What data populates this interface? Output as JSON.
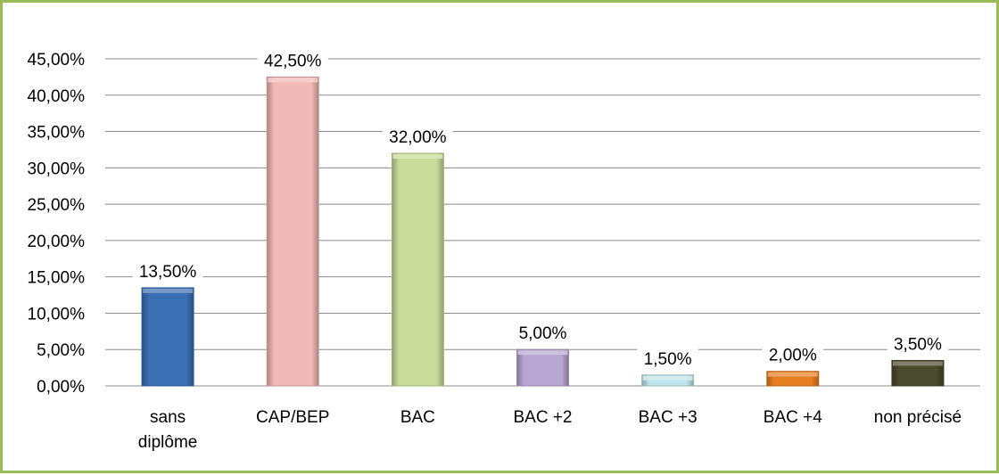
{
  "chart_data": {
    "type": "bar",
    "categories": [
      "sans diplôme",
      "CAP/BEP",
      "BAC",
      "BAC +2",
      "BAC +3",
      "BAC +4",
      "non précisé"
    ],
    "category_lines": [
      [
        "sans",
        "diplôme"
      ],
      [
        "CAP/BEP"
      ],
      [
        "BAC"
      ],
      [
        "BAC +2"
      ],
      [
        "BAC +3"
      ],
      [
        "BAC +4"
      ],
      [
        "non précisé"
      ]
    ],
    "values": [
      13.5,
      42.5,
      32.0,
      5.0,
      1.5,
      2.0,
      3.5
    ],
    "value_labels": [
      "13,50%",
      "42,50%",
      "32,00%",
      "5,00%",
      "1,50%",
      "2,00%",
      "3,50%"
    ],
    "y_ticks": [
      "0,00%",
      "5,00%",
      "10,00%",
      "15,00%",
      "20,00%",
      "25,00%",
      "30,00%",
      "35,00%",
      "40,00%",
      "45,00%"
    ],
    "ylim": [
      0,
      45
    ],
    "y_step": 5,
    "grid": true,
    "legend": "none",
    "title": "",
    "xlabel": "",
    "ylabel": "",
    "colors": [
      "#3a6fb4",
      "#f1b9b7",
      "#c9dc9a",
      "#b7a6d2",
      "#bfe3ea",
      "#e67e22",
      "#4a4a2e"
    ],
    "frame_color": "#9bbb59",
    "gridline_color": "#8c8c8c"
  }
}
